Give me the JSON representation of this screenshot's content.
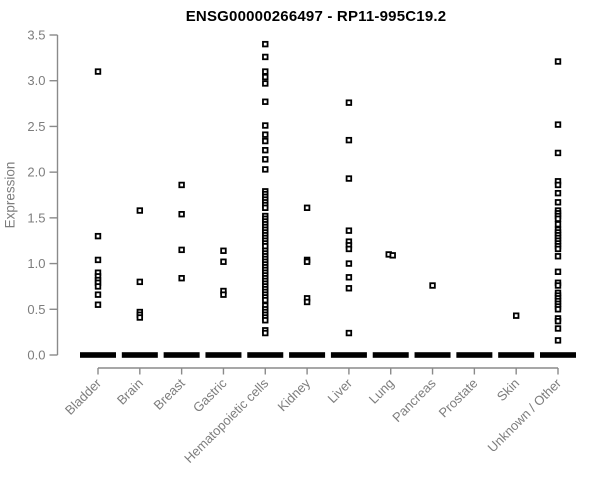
{
  "chart_data": {
    "type": "scatter",
    "title": "ENSG00000266497 - RP11-995C19.2",
    "ylabel": "Expression",
    "ylim": [
      0.0,
      3.5
    ],
    "yticks": [
      0.0,
      0.5,
      1.0,
      1.5,
      2.0,
      2.5,
      3.0,
      3.5
    ],
    "yticklabels": [
      "0.0",
      "0.5",
      "1.0",
      "1.5",
      "2.0",
      "2.5",
      "3.0",
      "3.5"
    ],
    "grid": false,
    "legend": "none",
    "point_style": "open-square",
    "point_color": "#000000",
    "axis_color": "#8a8a8a",
    "label_color": "#7d7d7d",
    "categories": [
      "Bladder",
      "Brain",
      "Breast",
      "Gastric",
      "Hematopoietic cells",
      "Kidney",
      "Liver",
      "Lung",
      "Pancreas",
      "Prostate",
      "Skin",
      "Unknown / Other"
    ],
    "series": [
      {
        "category": "Bladder",
        "zero_cluster": true,
        "values": [
          3.1,
          1.3,
          1.04,
          0.9,
          0.86,
          0.82,
          0.79,
          0.75,
          0.66,
          0.55
        ]
      },
      {
        "category": "Brain",
        "zero_cluster": true,
        "values": [
          1.58,
          0.8,
          0.47,
          0.44,
          0.41
        ]
      },
      {
        "category": "Breast",
        "zero_cluster": true,
        "values": [
          1.86,
          1.54,
          1.15,
          0.84
        ]
      },
      {
        "category": "Gastric",
        "zero_cluster": true,
        "values": [
          1.14,
          1.02,
          0.7,
          0.66
        ]
      },
      {
        "category": "Hematopoietic cells",
        "zero_cluster": true,
        "values": [
          3.4,
          3.26,
          3.1,
          3.04,
          2.97,
          2.77,
          2.51,
          2.41,
          2.34,
          2.24,
          2.14,
          2.03,
          1.79,
          1.76,
          1.73,
          1.7,
          1.67,
          1.64,
          1.61,
          1.52,
          1.49,
          1.46,
          1.43,
          1.4,
          1.37,
          1.34,
          1.31,
          1.28,
          1.25,
          1.22,
          1.19,
          1.14,
          1.11,
          1.08,
          1.05,
          1.02,
          0.99,
          0.96,
          0.93,
          0.9,
          0.87,
          0.84,
          0.81,
          0.78,
          0.75,
          0.72,
          0.69,
          0.66,
          0.63,
          0.6,
          0.54,
          0.5,
          0.47,
          0.44,
          0.41,
          0.38,
          0.27,
          0.24
        ]
      },
      {
        "category": "Kidney",
        "zero_cluster": true,
        "values": [
          1.61,
          1.04,
          1.02,
          0.62,
          0.58
        ]
      },
      {
        "category": "Liver",
        "zero_cluster": true,
        "values": [
          2.76,
          2.35,
          1.93,
          1.36,
          1.24,
          1.2,
          1.16,
          1.0,
          0.85,
          0.73,
          0.24
        ]
      },
      {
        "category": "Lung",
        "zero_cluster": true,
        "values": [
          1.1,
          1.09
        ],
        "dx": [
          -2,
          2
        ]
      },
      {
        "category": "Pancreas",
        "zero_cluster": true,
        "values": [
          0.76
        ]
      },
      {
        "category": "Prostate",
        "zero_cluster": true,
        "values": []
      },
      {
        "category": "Skin",
        "zero_cluster": true,
        "values": [
          0.43
        ]
      },
      {
        "category": "Unknown / Other",
        "zero_cluster": true,
        "values": [
          3.21,
          2.52,
          2.21,
          1.9,
          1.86,
          1.77,
          1.67,
          1.58,
          1.55,
          1.52,
          1.49,
          1.43,
          1.37,
          1.34,
          1.31,
          1.28,
          1.25,
          1.22,
          1.19,
          1.16,
          1.08,
          0.91,
          0.79,
          0.76,
          0.68,
          0.65,
          0.62,
          0.59,
          0.56,
          0.53,
          0.5,
          0.4,
          0.37,
          0.29,
          0.16
        ]
      }
    ],
    "zero_cluster_note": "each category shows a dense horizontal band of overlapping points at expression 0.0"
  }
}
